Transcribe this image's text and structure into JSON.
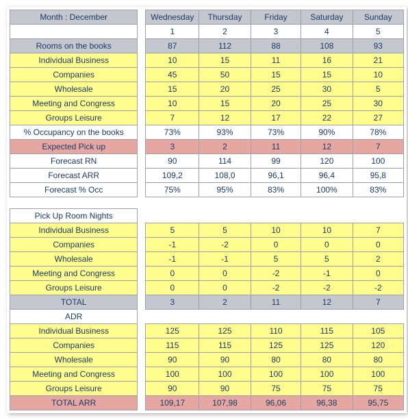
{
  "header": {
    "month_label": "Month : December",
    "days": [
      "Wednesday",
      "Thursday",
      "Friday",
      "Saturday",
      "Sunday"
    ],
    "dates": [
      "1",
      "2",
      "3",
      "4",
      "5"
    ]
  },
  "top": {
    "rooms_label": "Rooms on the books",
    "rooms": [
      "87",
      "112",
      "88",
      "108",
      "93"
    ],
    "ib_label": "Individual Business",
    "ib": [
      "10",
      "15",
      "11",
      "16",
      "21"
    ],
    "co_label": "Companies",
    "co": [
      "45",
      "50",
      "15",
      "15",
      "10"
    ],
    "wh_label": "Wholesale",
    "wh": [
      "15",
      "20",
      "25",
      "30",
      "5"
    ],
    "mc_label": "Meeting and Congress",
    "mc": [
      "10",
      "15",
      "20",
      "25",
      "30"
    ],
    "gl_label": "Groups Leisure",
    "gl": [
      "7",
      "12",
      "17",
      "22",
      "27"
    ],
    "occ_label": "% Occupancy on the books",
    "occ": [
      "73%",
      "93%",
      "73%",
      "90%",
      "78%"
    ],
    "exp_label": "Expected Pick up",
    "exp": [
      "3",
      "2",
      "11",
      "12",
      "7"
    ],
    "frn_label": "Forecast RN",
    "frn": [
      "90",
      "114",
      "99",
      "120",
      "100"
    ],
    "farr_label": "Forecast ARR",
    "farr": [
      "109,2",
      "108,0",
      "96,1",
      "96,4",
      "95,8"
    ],
    "focc_label": "Forecast % Occ",
    "focc": [
      "75%",
      "95%",
      "83%",
      "100%",
      "83%"
    ]
  },
  "pick": {
    "section_label": "Pick Up Room Nights",
    "ib_label": "Individual Business",
    "ib": [
      "5",
      "5",
      "10",
      "10",
      "7"
    ],
    "co_label": "Companies",
    "co": [
      "-1",
      "-2",
      "0",
      "0",
      "0"
    ],
    "wh_label": "Wholesale",
    "wh": [
      "-1",
      "-1",
      "5",
      "5",
      "2"
    ],
    "mc_label": "Meeting and Congress",
    "mc": [
      "0",
      "0",
      "-2",
      "-1",
      "0"
    ],
    "gl_label": "Groups Leisure",
    "gl": [
      "0",
      "0",
      "-2",
      "-2",
      "-2"
    ],
    "tot_label": "TOTAL",
    "tot": [
      "3",
      "2",
      "11",
      "12",
      "7"
    ]
  },
  "adr": {
    "section_label": "ADR",
    "ib_label": "Individual Business",
    "ib": [
      "125",
      "125",
      "110",
      "115",
      "105"
    ],
    "co_label": "Companies",
    "co": [
      "115",
      "115",
      "125",
      "125",
      "120"
    ],
    "wh_label": "Wholesale",
    "wh": [
      "90",
      "90",
      "80",
      "80",
      "80"
    ],
    "mc_label": "Meeting and Congress",
    "mc": [
      "100",
      "100",
      "100",
      "100",
      "100"
    ],
    "gl_label": "Groups Leisure",
    "gl": [
      "90",
      "90",
      "75",
      "75",
      "75"
    ],
    "tot_label": "TOTAL ARR",
    "tot": [
      "109,17",
      "107,98",
      "96,06",
      "96,38",
      "95,75"
    ]
  },
  "colors": {
    "header_bg": "#c4c7ce",
    "yellow": "#fefd8e",
    "pink": "#e6a7a3",
    "text": "#1b3a66",
    "border": "#9ca0a8"
  }
}
